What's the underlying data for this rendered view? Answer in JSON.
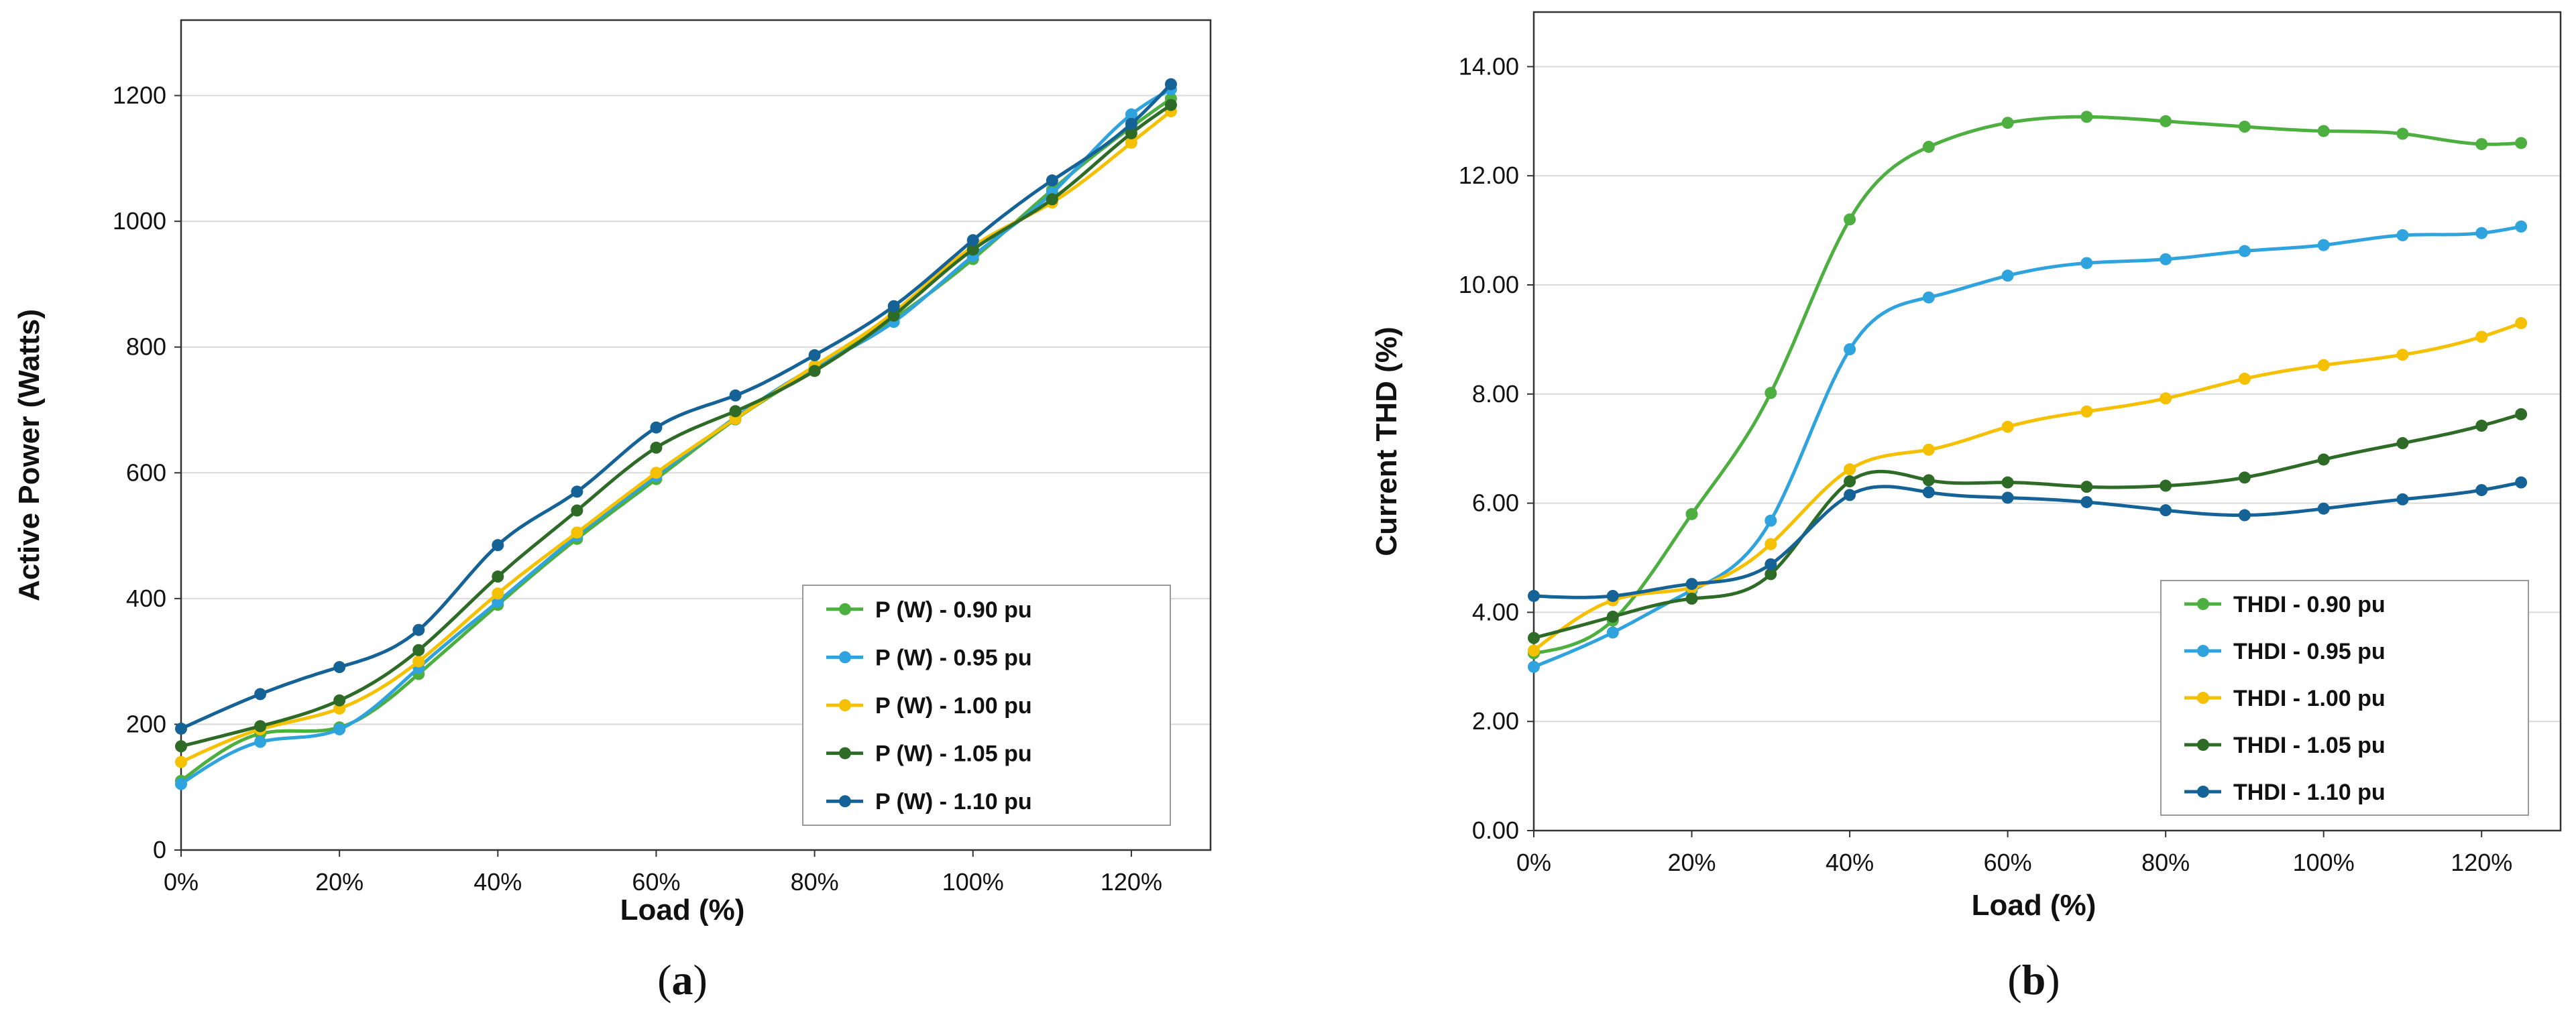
{
  "chart_data": [
    {
      "type": "line",
      "caption": "a",
      "title": "",
      "xlabel": "Load (%)",
      "ylabel": "Active Power (Watts)",
      "x": [
        0,
        10,
        20,
        30,
        40,
        50,
        60,
        70,
        80,
        90,
        100,
        110,
        120,
        125
      ],
      "xlim": [
        0,
        130
      ],
      "xticks": [
        0,
        20,
        40,
        60,
        80,
        100,
        120
      ],
      "xtick_labels": [
        "0%",
        "20%",
        "40%",
        "60%",
        "80%",
        "100%",
        "120%"
      ],
      "ylim": [
        0,
        1320
      ],
      "yticks": [
        0,
        200,
        400,
        600,
        800,
        1000,
        1200
      ],
      "ytick_labels": [
        "0",
        "200",
        "400",
        "600",
        "800",
        "1000",
        "1200"
      ],
      "grid": true,
      "legend_position": "bottom-right",
      "series": [
        {
          "name": "P (W) - 0.90 pu",
          "color": "#4caf3f",
          "values": [
            110,
            185,
            195,
            280,
            390,
            495,
            590,
            685,
            765,
            845,
            940,
            1050,
            1150,
            1195
          ]
        },
        {
          "name": "P (W) - 0.95 pu",
          "color": "#2ea3dd",
          "values": [
            105,
            172,
            192,
            290,
            395,
            500,
            595,
            688,
            768,
            840,
            945,
            1045,
            1170,
            1210
          ]
        },
        {
          "name": "P (W) - 1.00 pu",
          "color": "#f5c000",
          "values": [
            140,
            192,
            225,
            300,
            408,
            505,
            600,
            686,
            770,
            855,
            960,
            1030,
            1125,
            1175
          ]
        },
        {
          "name": "P (W) - 1.05 pu",
          "color": "#2e6b26",
          "values": [
            165,
            197,
            238,
            318,
            435,
            540,
            640,
            698,
            762,
            850,
            955,
            1035,
            1140,
            1185
          ]
        },
        {
          "name": "P (W) - 1.10 pu",
          "color": "#156396",
          "values": [
            193,
            248,
            291,
            350,
            485,
            570,
            672,
            723,
            787,
            865,
            970,
            1065,
            1155,
            1218
          ]
        }
      ]
    },
    {
      "type": "line",
      "caption": "b",
      "title": "",
      "xlabel": "Load (%)",
      "ylabel": "Current THD (%)",
      "x": [
        0,
        10,
        20,
        30,
        40,
        50,
        60,
        70,
        80,
        90,
        100,
        110,
        120,
        125
      ],
      "xlim": [
        0,
        130
      ],
      "xticks": [
        0,
        20,
        40,
        60,
        80,
        100,
        120
      ],
      "xtick_labels": [
        "0%",
        "20%",
        "40%",
        "60%",
        "80%",
        "100%",
        "120%"
      ],
      "ylim": [
        0,
        15
      ],
      "yticks": [
        0,
        2,
        4,
        6,
        8,
        10,
        12,
        14
      ],
      "ytick_labels": [
        "0.00",
        "2.00",
        "4.00",
        "6.00",
        "8.00",
        "10.00",
        "12.00",
        "14.00"
      ],
      "grid": true,
      "legend_position": "bottom-right",
      "series": [
        {
          "name": "THDI - 0.90 pu",
          "color": "#4caf3f",
          "values": [
            3.25,
            3.85,
            5.8,
            8.02,
            11.2,
            12.53,
            12.97,
            13.08,
            13.0,
            12.9,
            12.82,
            12.77,
            12.58,
            12.6
          ]
        },
        {
          "name": "THDI - 0.95 pu",
          "color": "#2ea3dd",
          "values": [
            3.0,
            3.63,
            4.4,
            5.68,
            8.82,
            9.77,
            10.17,
            10.4,
            10.47,
            10.62,
            10.73,
            10.91,
            10.95,
            11.07
          ]
        },
        {
          "name": "THDI - 1.00 pu",
          "color": "#f5c000",
          "values": [
            3.3,
            4.22,
            4.45,
            5.25,
            6.62,
            6.98,
            7.4,
            7.68,
            7.92,
            8.28,
            8.53,
            8.72,
            9.05,
            9.3
          ]
        },
        {
          "name": "THDI - 1.05 pu",
          "color": "#2e6b26",
          "values": [
            3.53,
            3.92,
            4.25,
            4.7,
            6.4,
            6.42,
            6.38,
            6.3,
            6.32,
            6.47,
            6.8,
            7.1,
            7.42,
            7.63
          ]
        },
        {
          "name": "THDI - 1.10 pu",
          "color": "#156396",
          "values": [
            4.3,
            4.3,
            4.52,
            4.88,
            6.15,
            6.2,
            6.1,
            6.02,
            5.87,
            5.78,
            5.9,
            6.07,
            6.24,
            6.38
          ]
        }
      ]
    }
  ]
}
